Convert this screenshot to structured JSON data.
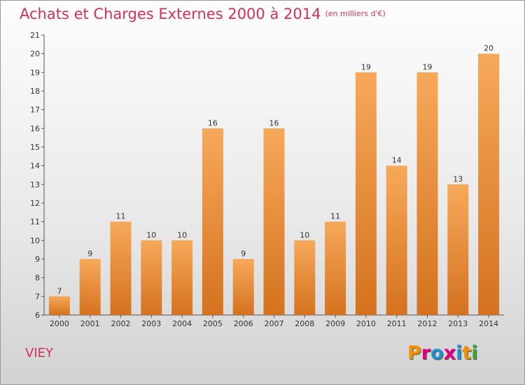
{
  "header": {
    "title": "Achats et Charges Externes 2000 à 2014",
    "subtitle": "(en milliers d'€)"
  },
  "footer": {
    "commune": "VIEY",
    "logo_text": "Proxiti"
  },
  "colors": {
    "title": "#d4305a",
    "bar_light": "#f6a95a",
    "bar_dark": "#d4721f",
    "logo_letters": [
      "#f39200",
      "#e4007c",
      "#1f8fd0",
      "#e4007c",
      "#1f8fd0",
      "#f39200",
      "#3aaa35"
    ]
  },
  "chart_data": {
    "type": "bar",
    "categories": [
      "2000",
      "2001",
      "2002",
      "2003",
      "2004",
      "2005",
      "2006",
      "2007",
      "2008",
      "2009",
      "2010",
      "2011",
      "2012",
      "2013",
      "2014"
    ],
    "values": [
      7,
      9,
      11,
      10,
      10,
      16,
      9,
      16,
      10,
      11,
      19,
      14,
      19,
      13,
      20
    ],
    "data_labels": [
      "7",
      "9",
      "11",
      "10",
      "10",
      "16",
      "9",
      "16",
      "10",
      "11",
      "19",
      "14",
      "19",
      "13",
      "20"
    ],
    "title": "Achats et Charges Externes 2000 à 2014",
    "subtitle": "(en milliers d'€)",
    "ylim": [
      6,
      21
    ],
    "yticks": [
      "6",
      "7",
      "8",
      "9",
      "10",
      "11",
      "12",
      "13",
      "14",
      "15",
      "16",
      "17",
      "18",
      "19",
      "20",
      "21"
    ],
    "grid": false
  }
}
